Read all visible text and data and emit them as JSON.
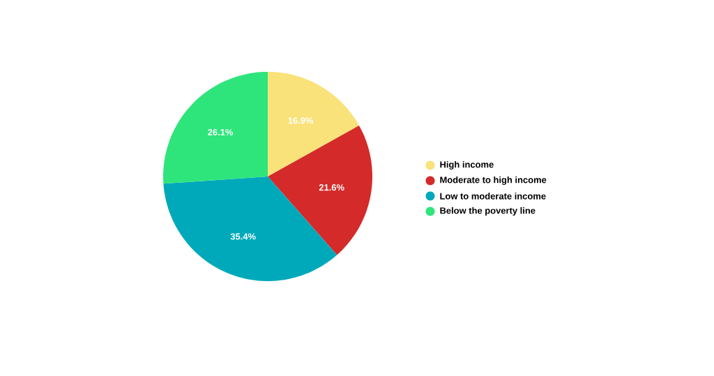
{
  "chart_data": {
    "type": "pie",
    "categories": [
      "High income",
      "Moderate to high income",
      "Low to moderate income",
      "Below the poverty line"
    ],
    "values": [
      16.9,
      21.6,
      35.4,
      26.1
    ],
    "colors": [
      "#f9e27a",
      "#d42a2a",
      "#00a9ba",
      "#2ee57b"
    ],
    "value_labels": [
      "16.9%",
      "21.6%",
      "35.4%",
      "26.1%"
    ],
    "legend": "right"
  }
}
